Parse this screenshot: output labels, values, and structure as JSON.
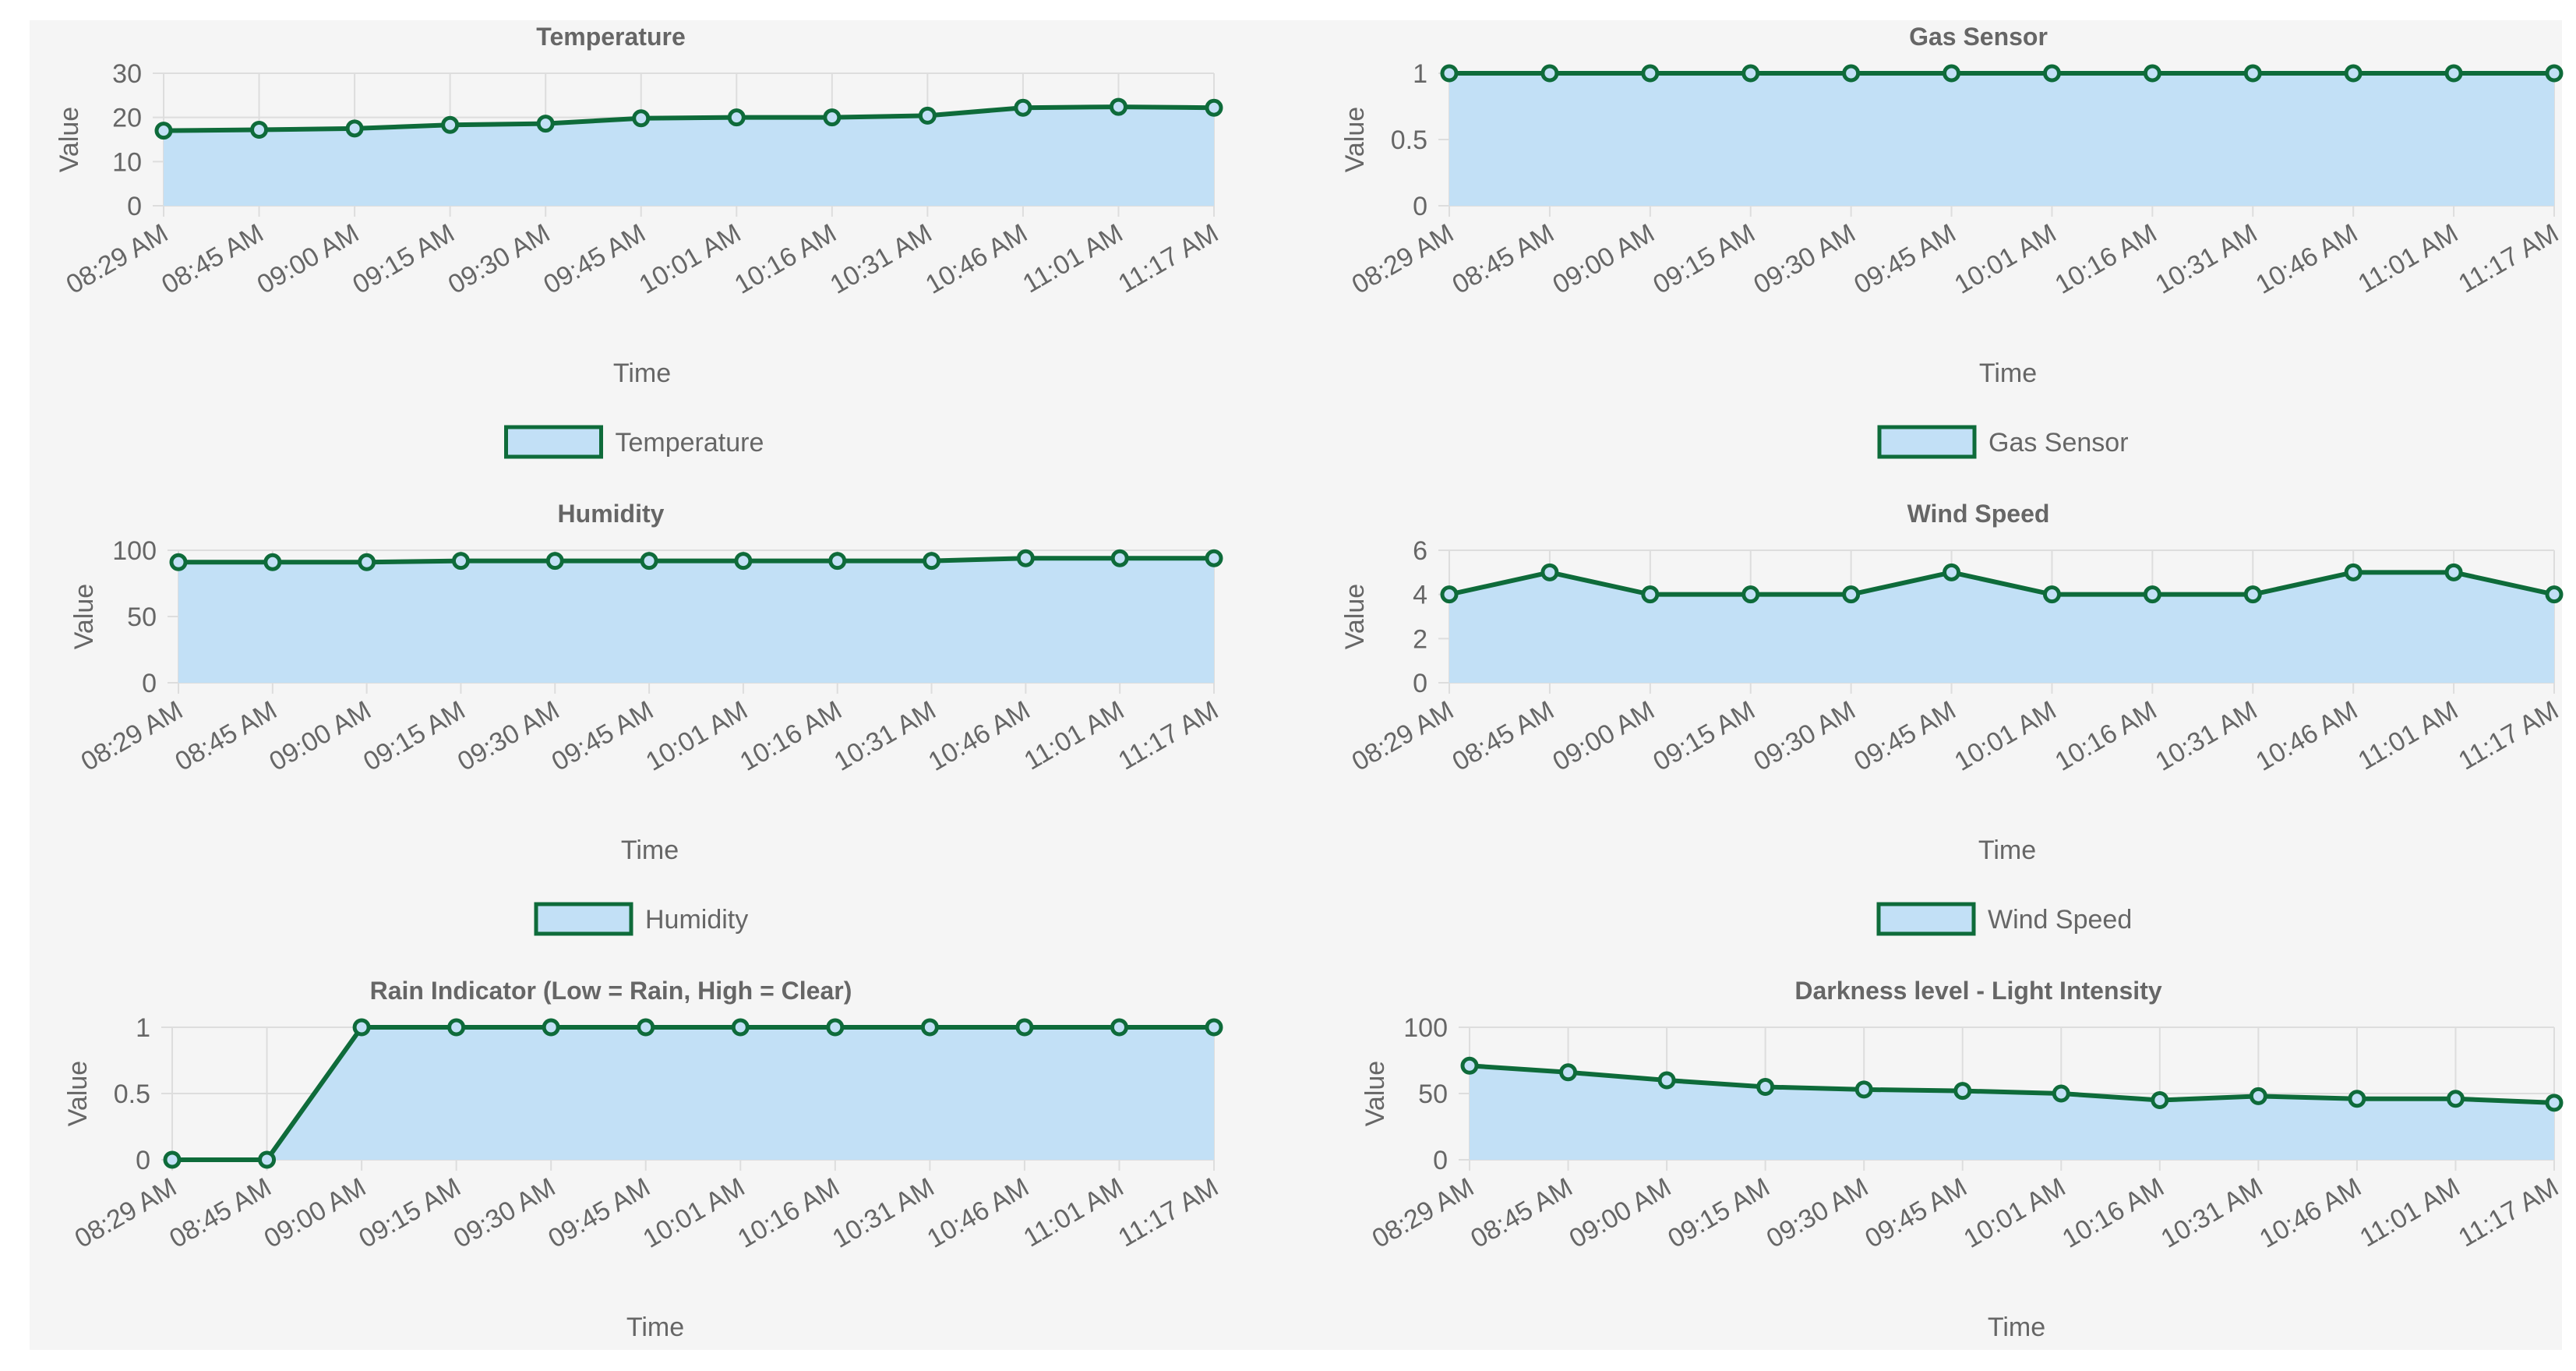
{
  "colors": {
    "line": "#0e6b3a",
    "fill": "#c2e0f6",
    "grid": "#dddddd",
    "text": "#666666",
    "panel": "#f5f5f5"
  },
  "chart_data": [
    {
      "type": "area",
      "title": "Temperature",
      "legend": "Temperature",
      "xlabel": "Time",
      "ylabel": "Value",
      "x": [
        "08:29 AM",
        "08:45 AM",
        "09:00 AM",
        "09:15 AM",
        "09:30 AM",
        "09:45 AM",
        "10:01 AM",
        "10:16 AM",
        "10:31 AM",
        "10:46 AM",
        "11:01 AM",
        "11:17 AM"
      ],
      "values": [
        17,
        17.2,
        17.5,
        18.3,
        18.6,
        19.8,
        20,
        20,
        20.4,
        22.2,
        22.4,
        22.2
      ],
      "ylim": [
        0,
        30
      ],
      "yticks": [
        0,
        10,
        20,
        30
      ],
      "show_legend": true
    },
    {
      "type": "area",
      "title": "Gas Sensor",
      "legend": "Gas Sensor",
      "xlabel": "Time",
      "ylabel": "Value",
      "x": [
        "08:29 AM",
        "08:45 AM",
        "09:00 AM",
        "09:15 AM",
        "09:30 AM",
        "09:45 AM",
        "10:01 AM",
        "10:16 AM",
        "10:31 AM",
        "10:46 AM",
        "11:01 AM",
        "11:17 AM"
      ],
      "values": [
        1,
        1,
        1,
        1,
        1,
        1,
        1,
        1,
        1,
        1,
        1,
        1
      ],
      "ylim": [
        0,
        1
      ],
      "yticks": [
        0,
        0.5,
        1
      ],
      "show_legend": true
    },
    {
      "type": "area",
      "title": "Humidity",
      "legend": "Humidity",
      "xlabel": "Time",
      "ylabel": "Value",
      "x": [
        "08:29 AM",
        "08:45 AM",
        "09:00 AM",
        "09:15 AM",
        "09:30 AM",
        "09:45 AM",
        "10:01 AM",
        "10:16 AM",
        "10:31 AM",
        "10:46 AM",
        "11:01 AM",
        "11:17 AM"
      ],
      "values": [
        91,
        91,
        91,
        92,
        92,
        92,
        92,
        92,
        92,
        94,
        94,
        94
      ],
      "ylim": [
        0,
        100
      ],
      "yticks": [
        0,
        50,
        100
      ],
      "show_legend": true
    },
    {
      "type": "area",
      "title": "Wind Speed",
      "legend": "Wind Speed",
      "xlabel": "Time",
      "ylabel": "Value",
      "x": [
        "08:29 AM",
        "08:45 AM",
        "09:00 AM",
        "09:15 AM",
        "09:30 AM",
        "09:45 AM",
        "10:01 AM",
        "10:16 AM",
        "10:31 AM",
        "10:46 AM",
        "11:01 AM",
        "11:17 AM"
      ],
      "values": [
        4,
        5,
        4,
        4,
        4,
        5,
        4,
        4,
        4,
        5,
        5,
        4
      ],
      "ylim": [
        0,
        6
      ],
      "yticks": [
        0,
        2,
        4,
        6
      ],
      "show_legend": true
    },
    {
      "type": "area",
      "title": "Rain Indicator (Low = Rain, High = Clear)",
      "legend": "",
      "xlabel": "Time",
      "ylabel": "Value",
      "x": [
        "08:29 AM",
        "08:45 AM",
        "09:00 AM",
        "09:15 AM",
        "09:30 AM",
        "09:45 AM",
        "10:01 AM",
        "10:16 AM",
        "10:31 AM",
        "10:46 AM",
        "11:01 AM",
        "11:17 AM"
      ],
      "values": [
        0,
        0,
        1,
        1,
        1,
        1,
        1,
        1,
        1,
        1,
        1,
        1
      ],
      "ylim": [
        0,
        1
      ],
      "yticks": [
        0,
        0.5,
        1
      ],
      "show_legend": false
    },
    {
      "type": "area",
      "title": "Darkness level - Light Intensity",
      "legend": "",
      "xlabel": "Time",
      "ylabel": "Value",
      "x": [
        "08:29 AM",
        "08:45 AM",
        "09:00 AM",
        "09:15 AM",
        "09:30 AM",
        "09:45 AM",
        "10:01 AM",
        "10:16 AM",
        "10:31 AM",
        "10:46 AM",
        "11:01 AM",
        "11:17 AM"
      ],
      "values": [
        71,
        66,
        60,
        55,
        53,
        52,
        50,
        45,
        48,
        46,
        46,
        43
      ],
      "ylim": [
        0,
        100
      ],
      "yticks": [
        0,
        50,
        100
      ],
      "show_legend": false
    }
  ]
}
